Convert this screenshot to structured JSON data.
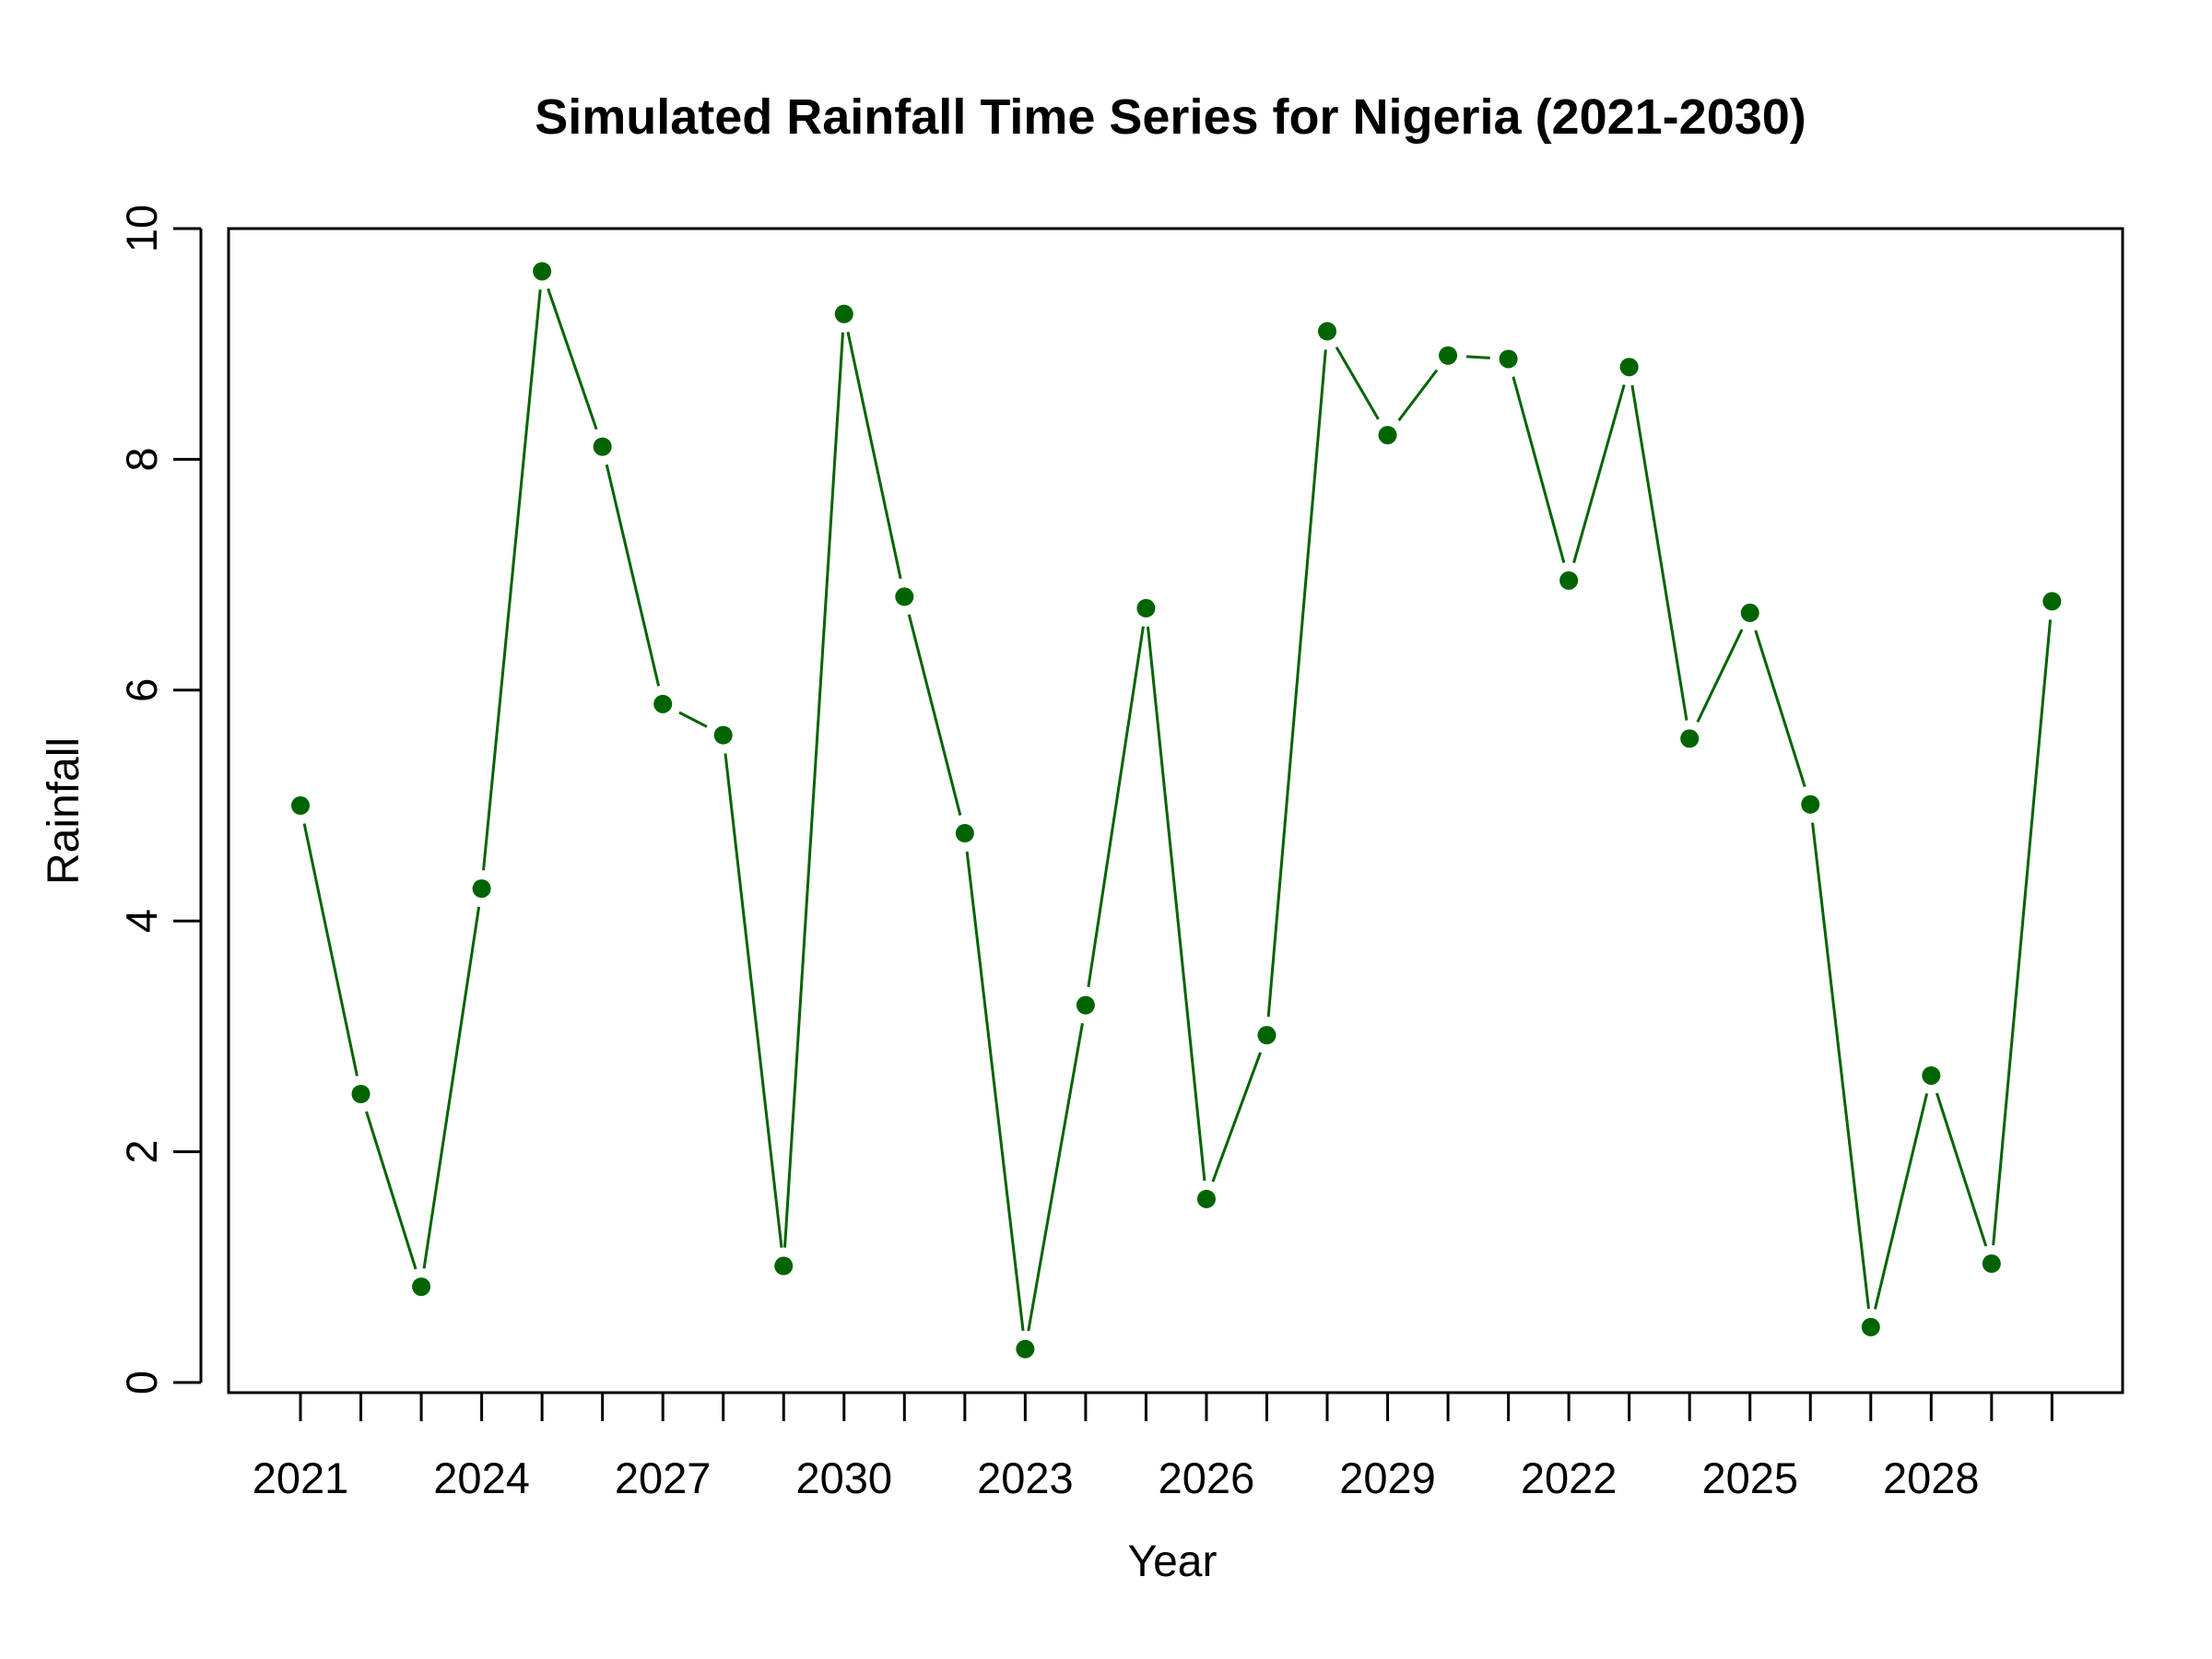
{
  "chart_data": {
    "type": "line",
    "title": "Simulated Rainfall Time Series for Nigeria (2021-2030)",
    "xlabel": "Year",
    "ylabel": "Rainfall",
    "ylim": [
      0,
      10
    ],
    "yticks": [
      0,
      2,
      4,
      6,
      8,
      10
    ],
    "categories": [
      "2021",
      "2022",
      "2023",
      "2024",
      "2025",
      "2026",
      "2027",
      "2028",
      "2029",
      "2030",
      "2021",
      "2022",
      "2023",
      "2024",
      "2025",
      "2026",
      "2027",
      "2028",
      "2029",
      "2030",
      "2021",
      "2022",
      "2023",
      "2024",
      "2025",
      "2026",
      "2027",
      "2028",
      "2029",
      "2030"
    ],
    "x_tick_labels": [
      "2021",
      "",
      "",
      "2024",
      "",
      "",
      "2027",
      "",
      "",
      "2030",
      "",
      "",
      "2023",
      "",
      "",
      "2026",
      "",
      "",
      "2029",
      "",
      "",
      "2022",
      "",
      "",
      "2025",
      "",
      "",
      "2028",
      "",
      ""
    ],
    "series": [
      {
        "values": [
          5.0,
          2.5,
          0.83,
          4.28,
          9.63,
          8.11,
          5.88,
          5.61,
          1.01,
          9.26,
          6.81,
          4.76,
          0.29,
          3.27,
          6.71,
          1.59,
          3.01,
          9.11,
          8.21,
          8.9,
          8.87,
          6.95,
          8.8,
          5.58,
          6.67,
          5.01,
          0.48,
          2.66,
          1.03,
          6.77
        ],
        "color": "#006400"
      }
    ],
    "grid": false,
    "legend": "none"
  }
}
